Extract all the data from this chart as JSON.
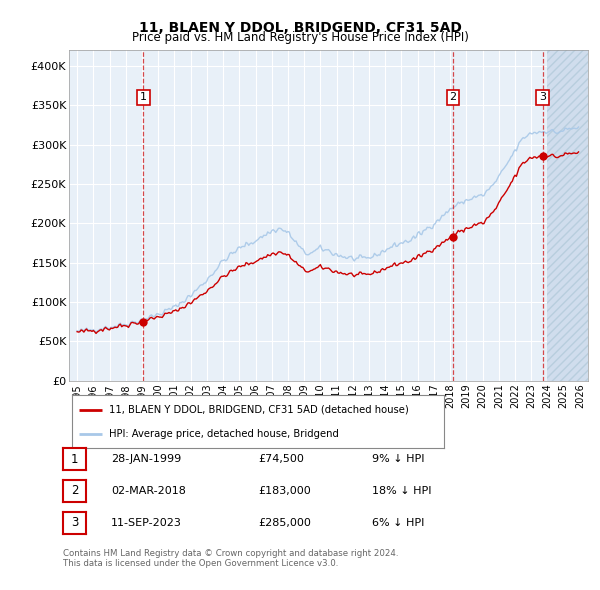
{
  "title": "11, BLAEN Y DDOL, BRIDGEND, CF31 5AD",
  "subtitle": "Price paid vs. HM Land Registry's House Price Index (HPI)",
  "legend_line1": "11, BLAEN Y DDOL, BRIDGEND, CF31 5AD (detached house)",
  "legend_line2": "HPI: Average price, detached house, Bridgend",
  "transactions": [
    {
      "num": 1,
      "date": "28-JAN-1999",
      "price": 74500,
      "pct": "9%",
      "dir": "↓",
      "year": 1999.083
    },
    {
      "num": 2,
      "date": "02-MAR-2018",
      "price": 183000,
      "pct": "18%",
      "dir": "↓",
      "year": 2018.167
    },
    {
      "num": 3,
      "date": "11-SEP-2023",
      "price": 285000,
      "pct": "6%",
      "dir": "↓",
      "year": 2023.708
    }
  ],
  "footer1": "Contains HM Land Registry data © Crown copyright and database right 2024.",
  "footer2": "This data is licensed under the Open Government Licence v3.0.",
  "ylim": [
    0,
    420000
  ],
  "yticks": [
    0,
    50000,
    100000,
    150000,
    200000,
    250000,
    300000,
    350000,
    400000
  ],
  "ytick_labels": [
    "£0",
    "£50K",
    "£100K",
    "£150K",
    "£200K",
    "£250K",
    "£300K",
    "£350K",
    "£400K"
  ],
  "xlim_start": 1994.5,
  "xlim_end": 2026.5,
  "hpi_color": "#a8c8e8",
  "price_color": "#cc0000",
  "vline_color": "#cc0000",
  "plot_bg": "#e8f0f8",
  "hatch_start": 2024.0,
  "title_fontsize": 10,
  "subtitle_fontsize": 8.5
}
